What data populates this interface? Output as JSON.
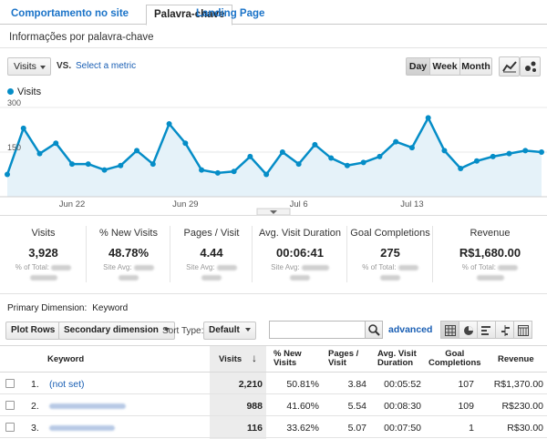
{
  "tabs": [
    "Comportamento no site",
    "Palavra-chave",
    "Landing Page"
  ],
  "subtitle": "Informações por palavra-chave",
  "controls": {
    "metric": "Visits",
    "vs": "VS.",
    "select_metric": "Select a metric",
    "periods": [
      "Day",
      "Week",
      "Month"
    ],
    "active_period": "Day"
  },
  "legend": "Visits",
  "chart_data": {
    "type": "area",
    "series": [
      {
        "name": "Visits",
        "values": [
          75,
          230,
          145,
          180,
          110,
          110,
          90,
          105,
          155,
          110,
          245,
          180,
          90,
          80,
          85,
          135,
          75,
          150,
          110,
          175,
          130,
          105,
          115,
          135,
          185,
          165,
          265,
          155,
          95,
          120,
          135,
          145,
          155,
          150,
          0
        ]
      }
    ],
    "x_tick_labels": [
      "Jun 22",
      "Jun 29",
      "Jul 6",
      "Jul 13"
    ],
    "y_tick_labels": [
      "300",
      "150"
    ],
    "ylim": [
      0,
      300
    ],
    "color": "#058dc7",
    "fill": "#e5f2f9"
  },
  "scorecards": [
    {
      "label": "Visits",
      "value": "3,928",
      "sub1": "% of Total:"
    },
    {
      "label": "% New Visits",
      "value": "48.78%",
      "sub1": "Site Avg:"
    },
    {
      "label": "Pages / Visit",
      "value": "4.44",
      "sub1": "Site Avg:"
    },
    {
      "label": "Avg. Visit Duration",
      "value": "00:06:41",
      "sub1": "Site Avg:"
    },
    {
      "label": "Goal Completions",
      "value": "275",
      "sub1": "% of Total:"
    },
    {
      "label": "Revenue",
      "value": "R$1,680.00",
      "sub1": "% of Total:"
    }
  ],
  "primary_dimension": {
    "label": "Primary Dimension:",
    "value": "Keyword"
  },
  "toolbar": {
    "plot_rows": "Plot Rows",
    "secondary": "Secondary dimension",
    "sort_type": "Sort Type:",
    "sort_value": "Default",
    "advanced": "advanced"
  },
  "table": {
    "headers": {
      "keyword": "Keyword",
      "visits": "Visits",
      "new_visits": "% New\nVisits",
      "pages": "Pages /\nVisit",
      "duration": "Avg. Visit\nDuration",
      "goals": "Goal\nCompletions",
      "revenue": "Revenue"
    },
    "rows": [
      {
        "idx": "1.",
        "keyword": "(not set)",
        "visits": "2,210",
        "new": "50.81%",
        "pages": "3.84",
        "dur": "00:05:52",
        "goals": "107",
        "rev": "R$1,370.00"
      },
      {
        "idx": "2.",
        "keyword": "",
        "visits": "988",
        "new": "41.60%",
        "pages": "5.54",
        "dur": "00:08:30",
        "goals": "109",
        "rev": "R$230.00"
      },
      {
        "idx": "3.",
        "keyword": "",
        "visits": "116",
        "new": "33.62%",
        "pages": "5.07",
        "dur": "00:07:50",
        "goals": "1",
        "rev": "R$30.00"
      }
    ]
  }
}
